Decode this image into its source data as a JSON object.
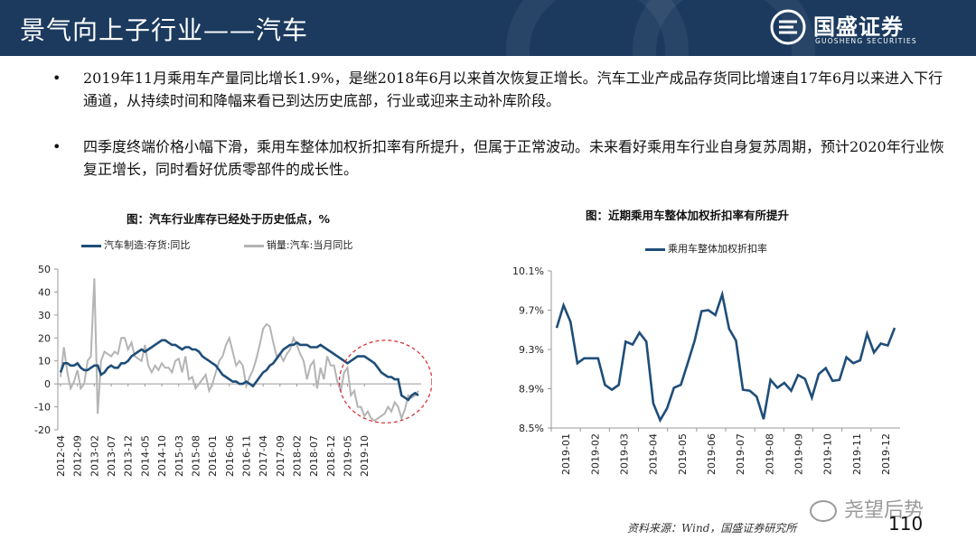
{
  "header": {
    "title": "景气向上子行业——汽车",
    "logo_cn": "国盛证券",
    "logo_en": "GUOSHENG SECURITIES"
  },
  "bullets": [
    "2019年11月乘用车产量同比增长1.9%，是继2018年6月以来首次恢复正增长。汽车工业产成品存货同比增速自17年6月以来进入下行通道，从持续时间和降幅来看已到达历史底部，行业或迎来主动补库阶段。",
    "四季度终端价格小幅下滑，乘用车整体加权折扣率有所提升，但属于正常波动。未来看好乘用车行业自身复苏周期，预计2020年行业恢复正增长，同时看好优质零部件的成长性。"
  ],
  "bullet_marker": "•",
  "chart_data": [
    {
      "type": "line",
      "title": "图：汽车行业库存已经处于历史低点，%",
      "ylim": [
        -20,
        50
      ],
      "yticks": [
        -20,
        -10,
        0,
        10,
        20,
        30,
        40,
        50
      ],
      "xticks": [
        "2012-04",
        "2012-09",
        "2013-02",
        "2013-07",
        "2013-12",
        "2014-05",
        "2014-10",
        "2015-03",
        "2015-08",
        "2016-01",
        "2016-06",
        "2016-11",
        "2017-04",
        "2017-09",
        "2018-02",
        "2018-07",
        "2018-12",
        "2019-05",
        "2019-10"
      ],
      "x_start": "2012-04",
      "x_end": "2019-11",
      "annotation": "dashed red ellipse around 2019-05 to 2019-11",
      "series": [
        {
          "name": "汽车制造:存货:同比",
          "color": "#1f4e79",
          "values": [
            5,
            9,
            9,
            8,
            8,
            9,
            7,
            6,
            6,
            7,
            8,
            8,
            4,
            5,
            7,
            8,
            7,
            7,
            9,
            9,
            10,
            12,
            13,
            14,
            15,
            14,
            15,
            16,
            17,
            18,
            19,
            19,
            18,
            17,
            17,
            16,
            15,
            16,
            16,
            15,
            15,
            14,
            12,
            11,
            10,
            9,
            8,
            6,
            4,
            3,
            2,
            1,
            1,
            0,
            0,
            1,
            0,
            -1,
            1,
            3,
            5,
            6,
            8,
            9,
            11,
            13,
            15,
            16,
            17,
            17,
            18,
            17,
            17,
            17,
            16,
            16,
            16,
            17,
            16,
            15,
            14,
            13,
            12,
            11,
            10,
            9,
            10,
            11,
            12,
            12,
            12,
            11,
            10,
            9,
            7,
            5,
            4,
            3,
            3,
            2,
            2,
            -5,
            -6,
            -7,
            -5,
            -4,
            -5
          ]
        },
        {
          "name": "销量:汽车:当月同比",
          "color": "#b4b4b4",
          "values": [
            3,
            16,
            5,
            -2,
            1,
            6,
            -2,
            0,
            10,
            12,
            46,
            -13,
            10,
            14,
            13,
            12,
            14,
            13,
            20,
            20,
            15,
            18,
            12,
            11,
            10,
            17,
            8,
            5,
            8,
            6,
            9,
            7,
            7,
            5,
            10,
            11,
            5,
            12,
            2,
            3,
            -2,
            0,
            2,
            4,
            -3,
            0,
            5,
            10,
            12,
            17,
            20,
            14,
            8,
            10,
            8,
            -1,
            3,
            6,
            11,
            17,
            24,
            26,
            25,
            18,
            12,
            13,
            10,
            13,
            15,
            20,
            17,
            13,
            10,
            2,
            8,
            10,
            -2,
            7,
            2,
            12,
            8,
            8,
            1,
            -3,
            5,
            7,
            -5,
            -3,
            -10,
            -10,
            -14,
            -12,
            -15,
            -16,
            -15,
            -14,
            -13,
            -10,
            -12,
            -8,
            -10,
            -15,
            -11,
            -5,
            -6,
            -5,
            -3
          ]
        }
      ]
    },
    {
      "type": "line",
      "title": "图：近期乘用车整体加权折扣率有所提升",
      "ylim": [
        8.5,
        10.1
      ],
      "yticks": [
        "8.5%",
        "8.9%",
        "9.3%",
        "9.7%",
        "10.1%"
      ],
      "xticks": [
        "2019-01",
        "2019-02",
        "2019-03",
        "2019-04",
        "2019-05",
        "2019-06",
        "2019-07",
        "2019-08",
        "2019-09",
        "2019-10",
        "2019-11",
        "2019-12"
      ],
      "series": [
        {
          "name": "乘用车整体加权折扣率",
          "color": "#1f4e79",
          "unit": "%",
          "values": [
            9.52,
            9.75,
            9.58,
            9.16,
            9.21,
            9.21,
            9.21,
            8.94,
            8.89,
            8.94,
            9.38,
            9.35,
            9.47,
            9.38,
            8.75,
            8.58,
            8.7,
            8.91,
            8.94,
            9.16,
            9.39,
            9.69,
            9.7,
            9.65,
            9.86,
            9.51,
            9.39,
            8.89,
            8.88,
            8.82,
            8.59,
            8.99,
            8.91,
            8.96,
            8.88,
            9.04,
            9.0,
            8.81,
            9.05,
            9.11,
            8.98,
            8.99,
            9.22,
            9.16,
            9.19,
            9.46,
            9.27,
            9.36,
            9.34,
            9.52
          ]
        }
      ]
    }
  ],
  "source": "资料来源：Wind，国盛证券研究所",
  "page_number": "110",
  "watermark": "尧望后势"
}
